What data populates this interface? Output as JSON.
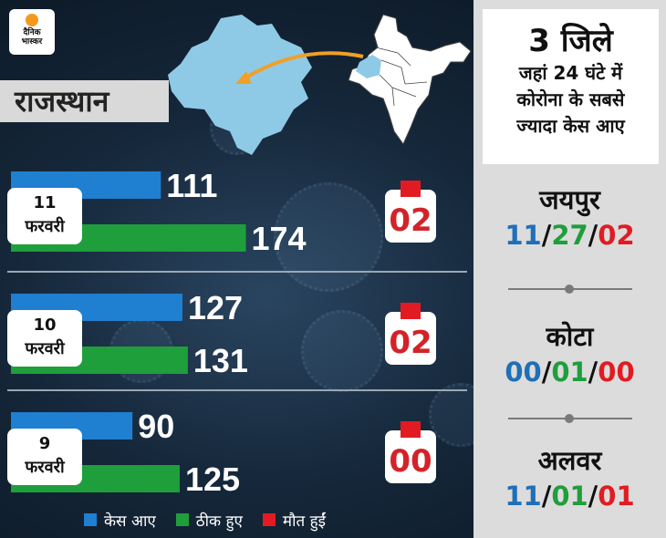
{
  "logo": {
    "line1": "दैनिक",
    "line2": "भास्कर"
  },
  "state": "राजस्थान",
  "colors": {
    "cases": "#1f7fd0",
    "recovered": "#1f9e3c",
    "deaths": "#e21b23",
    "map": "#8ecae6",
    "arrow": "#f0a028"
  },
  "chart_data": {
    "type": "bar",
    "orientation": "horizontal",
    "categories": [
      {
        "day": "11",
        "month": "फरवरी"
      },
      {
        "day": "10",
        "month": "फरवरी"
      },
      {
        "day": "9",
        "month": "फरवरी"
      }
    ],
    "series": [
      {
        "name": "केस आए",
        "values": [
          111,
          127,
          90
        ]
      },
      {
        "name": "ठीक हुए",
        "values": [
          174,
          131,
          125
        ]
      },
      {
        "name": "मौत हुईं",
        "values": [
          "02",
          "02",
          "00"
        ]
      }
    ],
    "legend_position": "bottom"
  },
  "panel": {
    "count": "3 जिले",
    "line1": "जहां 24 घंटे में",
    "line2": "कोरोना के सबसे",
    "line3": "ज्यादा केस आए",
    "districts": [
      {
        "name": "जयपुर",
        "cases": "11",
        "recovered": "27",
        "deaths": "02"
      },
      {
        "name": "कोटा",
        "cases": "00",
        "recovered": "01",
        "deaths": "00"
      },
      {
        "name": "अलवर",
        "cases": "11",
        "recovered": "01",
        "deaths": "01"
      }
    ]
  }
}
